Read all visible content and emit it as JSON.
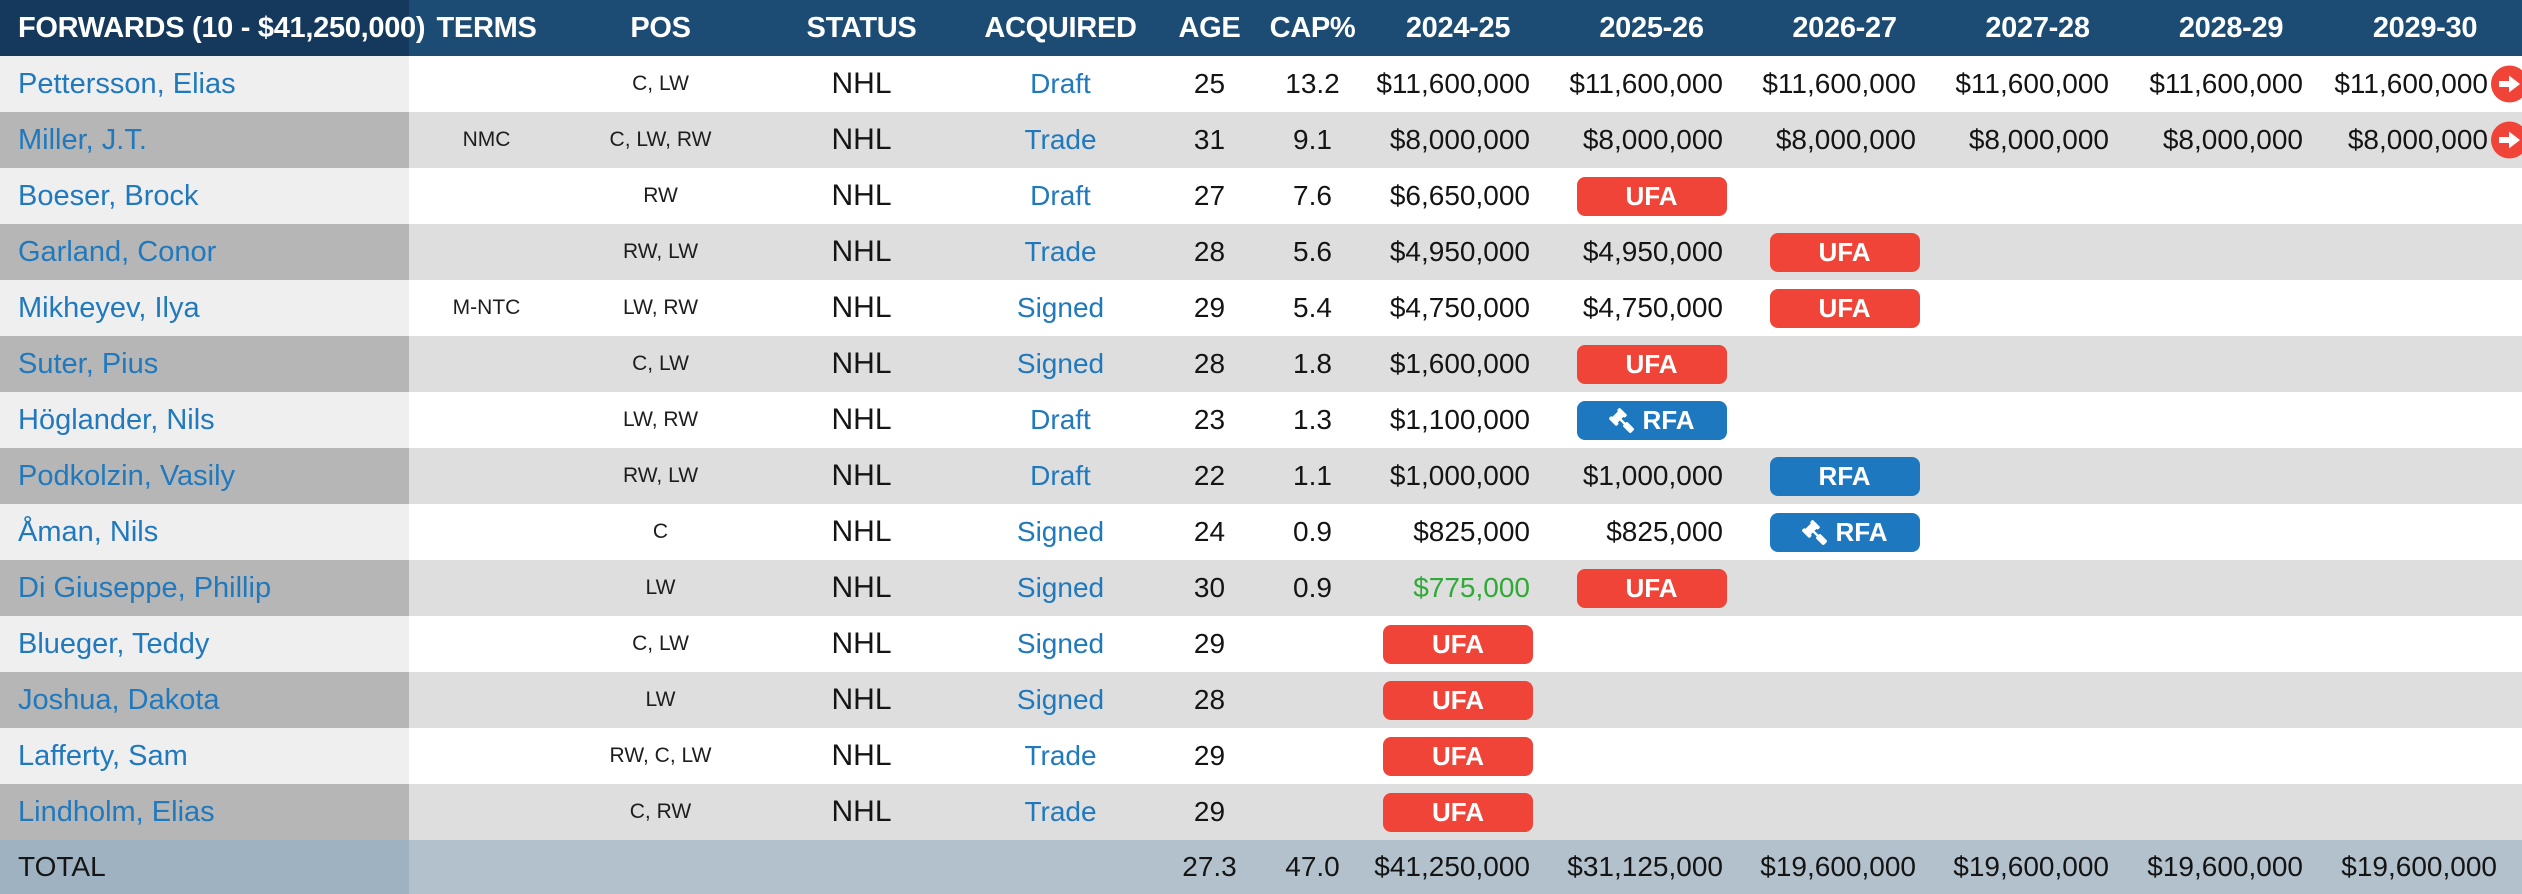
{
  "table": {
    "columns": [
      "FORWARDS (10 - $41,250,000)",
      "TERMS",
      "POS",
      "STATUS",
      "ACQUIRED",
      "AGE",
      "CAP%",
      "2024-25",
      "2025-26",
      "2026-27",
      "2027-28",
      "2028-29",
      "2029-30"
    ],
    "rows": [
      {
        "name": "Pettersson, Elias",
        "terms": "",
        "pos": "C, LW",
        "status": "NHL",
        "acquired": "Draft",
        "age": "25",
        "cap_pct": "13.2",
        "years": [
          {
            "type": "money",
            "value": "$11,600,000"
          },
          {
            "type": "money",
            "value": "$11,600,000"
          },
          {
            "type": "money",
            "value": "$11,600,000"
          },
          {
            "type": "money",
            "value": "$11,600,000"
          },
          {
            "type": "money",
            "value": "$11,600,000"
          },
          {
            "type": "money",
            "value": "$11,600,000",
            "arrow": true
          }
        ]
      },
      {
        "name": "Miller, J.T.",
        "terms": "NMC",
        "pos": "C, LW, RW",
        "status": "NHL",
        "acquired": "Trade",
        "age": "31",
        "cap_pct": "9.1",
        "years": [
          {
            "type": "money",
            "value": "$8,000,000"
          },
          {
            "type": "money",
            "value": "$8,000,000"
          },
          {
            "type": "money",
            "value": "$8,000,000"
          },
          {
            "type": "money",
            "value": "$8,000,000"
          },
          {
            "type": "money",
            "value": "$8,000,000"
          },
          {
            "type": "money",
            "value": "$8,000,000",
            "arrow": true
          }
        ]
      },
      {
        "name": "Boeser, Brock",
        "terms": "",
        "pos": "RW",
        "status": "NHL",
        "acquired": "Draft",
        "age": "27",
        "cap_pct": "7.6",
        "years": [
          {
            "type": "money",
            "value": "$6,650,000"
          },
          {
            "type": "badge",
            "badge": "UFA"
          },
          null,
          null,
          null,
          null
        ]
      },
      {
        "name": "Garland, Conor",
        "terms": "",
        "pos": "RW, LW",
        "status": "NHL",
        "acquired": "Trade",
        "age": "28",
        "cap_pct": "5.6",
        "years": [
          {
            "type": "money",
            "value": "$4,950,000"
          },
          {
            "type": "money",
            "value": "$4,950,000"
          },
          {
            "type": "badge",
            "badge": "UFA"
          },
          null,
          null,
          null
        ]
      },
      {
        "name": "Mikheyev, Ilya",
        "terms": "M-NTC",
        "pos": "LW, RW",
        "status": "NHL",
        "acquired": "Signed",
        "age": "29",
        "cap_pct": "5.4",
        "years": [
          {
            "type": "money",
            "value": "$4,750,000"
          },
          {
            "type": "money",
            "value": "$4,750,000"
          },
          {
            "type": "badge",
            "badge": "UFA"
          },
          null,
          null,
          null
        ]
      },
      {
        "name": "Suter, Pius",
        "terms": "",
        "pos": "C, LW",
        "status": "NHL",
        "acquired": "Signed",
        "age": "28",
        "cap_pct": "1.8",
        "years": [
          {
            "type": "money",
            "value": "$1,600,000"
          },
          {
            "type": "badge",
            "badge": "UFA"
          },
          null,
          null,
          null,
          null
        ]
      },
      {
        "name": "Höglander, Nils",
        "terms": "",
        "pos": "LW, RW",
        "status": "NHL",
        "acquired": "Draft",
        "age": "23",
        "cap_pct": "1.3",
        "years": [
          {
            "type": "money",
            "value": "$1,100,000"
          },
          {
            "type": "badge",
            "badge": "RFA",
            "gavel": true
          },
          null,
          null,
          null,
          null
        ]
      },
      {
        "name": "Podkolzin, Vasily",
        "terms": "",
        "pos": "RW, LW",
        "status": "NHL",
        "acquired": "Draft",
        "age": "22",
        "cap_pct": "1.1",
        "years": [
          {
            "type": "money",
            "value": "$1,000,000"
          },
          {
            "type": "money",
            "value": "$1,000,000"
          },
          {
            "type": "badge",
            "badge": "RFA"
          },
          null,
          null,
          null
        ]
      },
      {
        "name": "Åman, Nils",
        "terms": "",
        "pos": "C",
        "status": "NHL",
        "acquired": "Signed",
        "age": "24",
        "cap_pct": "0.9",
        "years": [
          {
            "type": "money",
            "value": "$825,000"
          },
          {
            "type": "money",
            "value": "$825,000"
          },
          {
            "type": "badge",
            "badge": "RFA",
            "gavel": true
          },
          null,
          null,
          null
        ]
      },
      {
        "name": "Di Giuseppe, Phillip",
        "terms": "",
        "pos": "LW",
        "status": "NHL",
        "acquired": "Signed",
        "age": "30",
        "cap_pct": "0.9",
        "years": [
          {
            "type": "money",
            "value": "$775,000",
            "green": true
          },
          {
            "type": "badge",
            "badge": "UFA"
          },
          null,
          null,
          null,
          null
        ]
      },
      {
        "name": "Blueger, Teddy",
        "terms": "",
        "pos": "C, LW",
        "status": "NHL",
        "acquired": "Signed",
        "age": "29",
        "cap_pct": "",
        "years": [
          {
            "type": "badge",
            "badge": "UFA"
          },
          null,
          null,
          null,
          null,
          null
        ]
      },
      {
        "name": "Joshua, Dakota",
        "terms": "",
        "pos": "LW",
        "status": "NHL",
        "acquired": "Signed",
        "age": "28",
        "cap_pct": "",
        "years": [
          {
            "type": "badge",
            "badge": "UFA"
          },
          null,
          null,
          null,
          null,
          null
        ]
      },
      {
        "name": "Lafferty, Sam",
        "terms": "",
        "pos": "RW, C, LW",
        "status": "NHL",
        "acquired": "Trade",
        "age": "29",
        "cap_pct": "",
        "years": [
          {
            "type": "badge",
            "badge": "UFA"
          },
          null,
          null,
          null,
          null,
          null
        ]
      },
      {
        "name": "Lindholm, Elias",
        "terms": "",
        "pos": "C, RW",
        "status": "NHL",
        "acquired": "Trade",
        "age": "29",
        "cap_pct": "",
        "years": [
          {
            "type": "badge",
            "badge": "UFA"
          },
          null,
          null,
          null,
          null,
          null
        ]
      }
    ],
    "total_row": {
      "label": "TOTAL",
      "age": "27.3",
      "cap_pct": "47.0",
      "years": [
        "$41,250,000",
        "$31,125,000",
        "$19,600,000",
        "$19,600,000",
        "$19,600,000",
        "$19,600,000"
      ]
    },
    "badge_labels": {
      "ufa": "UFA",
      "rfa": "RFA"
    },
    "colors": {
      "header_bg": "#1c4b74",
      "header_first_col_bg": "#15395d",
      "link_blue": "#2179bd",
      "ufa_red": "#ef4437",
      "rfa_blue": "#1e78bf",
      "money_green": "#2faa36",
      "even_row_bg": "#dedede",
      "even_row_first_col_bg": "#b6b6b6",
      "odd_row_first_col_bg": "#efefef",
      "total_row_bg": "#b3c1cc",
      "total_row_first_col_bg": "#9fb2c1"
    }
  }
}
